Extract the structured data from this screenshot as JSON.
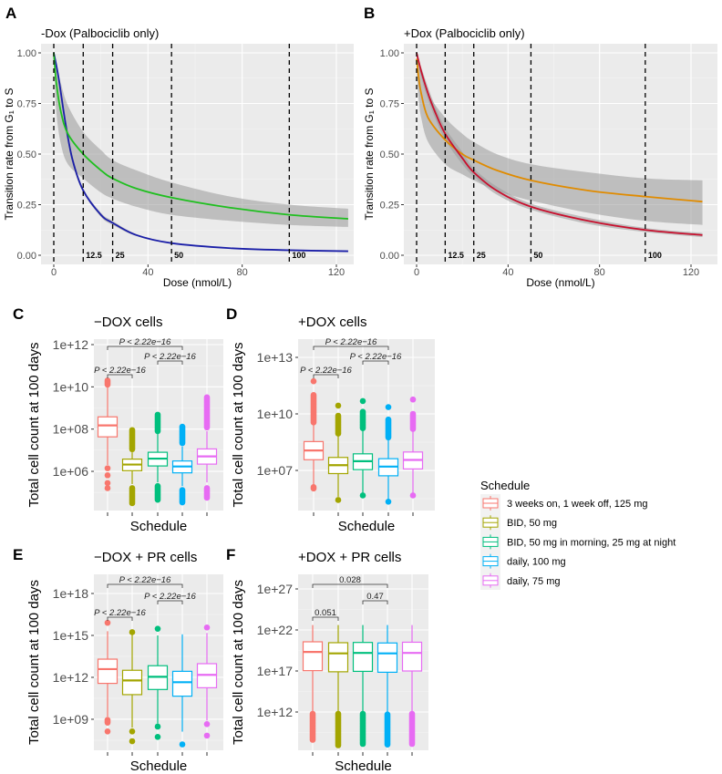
{
  "schedule_colors": {
    "3 weeks on, 1 week off, 125 mg": "#F8766D",
    "BID, 50 mg": "#A3A500",
    "BID, 50 mg in morning, 25 mg at night": "#00BF7D",
    "daily, 100 mg": "#00B0F6",
    "daily, 75 mg": "#E76BF3"
  },
  "legend": {
    "title": "Schedule",
    "items": [
      {
        "label": "3 weeks on, 1 week off, 125 mg",
        "color": "#F8766D"
      },
      {
        "label": "BID, 50 mg",
        "color": "#A3A500"
      },
      {
        "label": "BID, 50 mg in morning, 25 mg at night",
        "color": "#00BF7D"
      },
      {
        "label": "daily, 100 mg",
        "color": "#00B0F6"
      },
      {
        "label": "daily, 75 mg",
        "color": "#E76BF3"
      }
    ]
  },
  "chart_data": [
    {
      "panel": "A",
      "type": "line",
      "title": "-Dox (Palbociclib only)",
      "xlabel": "Dose (nmol/L)",
      "ylabel": "Transition rate from G₁ to S",
      "xlim": [
        0,
        125
      ],
      "ylim": [
        0,
        1
      ],
      "xticks": [
        0,
        40,
        80,
        120
      ],
      "yticks": [
        "0.00",
        "0.25",
        "0.50",
        "0.75",
        "1.00"
      ],
      "grid": true,
      "vlines": [
        {
          "x": 0,
          "label": ""
        },
        {
          "x": 12.5,
          "label": "12.5"
        },
        {
          "x": 25,
          "label": "25"
        },
        {
          "x": 50,
          "label": "50"
        },
        {
          "x": 100,
          "label": "100"
        }
      ],
      "series": [
        {
          "color": "#1B1FA8",
          "x": [
            0,
            2,
            5,
            8,
            12.5,
            20,
            25,
            35,
            50,
            75,
            100,
            125
          ],
          "y": [
            1.0,
            0.88,
            0.65,
            0.47,
            0.32,
            0.2,
            0.16,
            0.1,
            0.06,
            0.035,
            0.025,
            0.02
          ],
          "band_lower": [
            0.99,
            0.86,
            0.63,
            0.45,
            0.31,
            0.19,
            0.15,
            0.095,
            0.057,
            0.033,
            0.023,
            0.018
          ],
          "band_upper": [
            1.0,
            0.9,
            0.67,
            0.49,
            0.33,
            0.21,
            0.17,
            0.105,
            0.063,
            0.037,
            0.027,
            0.022
          ]
        },
        {
          "color": "#1FBF1F",
          "x": [
            0,
            1,
            3,
            6,
            12.5,
            20,
            25,
            35,
            50,
            75,
            100,
            125
          ],
          "y": [
            1.0,
            0.86,
            0.71,
            0.6,
            0.5,
            0.42,
            0.38,
            0.33,
            0.285,
            0.235,
            0.2,
            0.18
          ],
          "band_lower": [
            0.98,
            0.72,
            0.55,
            0.45,
            0.38,
            0.31,
            0.28,
            0.24,
            0.2,
            0.17,
            0.15,
            0.14
          ],
          "band_upper": [
            1.0,
            0.95,
            0.85,
            0.74,
            0.61,
            0.52,
            0.47,
            0.42,
            0.36,
            0.29,
            0.25,
            0.23
          ]
        }
      ]
    },
    {
      "panel": "B",
      "type": "line",
      "title": "+Dox (Palbociclib only)",
      "xlabel": "Dose (nmol/L)",
      "ylabel": "Transition rate from G₁ to S",
      "xlim": [
        0,
        125
      ],
      "ylim": [
        0,
        1
      ],
      "xticks": [
        0,
        40,
        80,
        120
      ],
      "yticks": [
        "0.00",
        "0.25",
        "0.50",
        "0.75",
        "1.00"
      ],
      "grid": true,
      "vlines": [
        {
          "x": 0,
          "label": ""
        },
        {
          "x": 12.5,
          "label": "12.5"
        },
        {
          "x": 25,
          "label": "25"
        },
        {
          "x": 50,
          "label": "50"
        },
        {
          "x": 100,
          "label": "100"
        }
      ],
      "series": [
        {
          "color": "#E08B00",
          "x": [
            0,
            1,
            2,
            5,
            12.5,
            20,
            25,
            35,
            50,
            75,
            100,
            125
          ],
          "y": [
            0.97,
            0.87,
            0.8,
            0.68,
            0.57,
            0.5,
            0.47,
            0.42,
            0.37,
            0.32,
            0.29,
            0.265
          ],
          "band_lower": [
            0.9,
            0.76,
            0.68,
            0.56,
            0.45,
            0.4,
            0.37,
            0.32,
            0.27,
            0.21,
            0.17,
            0.15
          ],
          "band_upper": [
            1.0,
            0.97,
            0.92,
            0.8,
            0.68,
            0.6,
            0.56,
            0.5,
            0.45,
            0.41,
            0.38,
            0.37
          ]
        },
        {
          "color": "#C8102E",
          "x": [
            0,
            2,
            5,
            8,
            12.5,
            20,
            25,
            35,
            50,
            75,
            100,
            125
          ],
          "y": [
            1.0,
            0.91,
            0.8,
            0.71,
            0.6,
            0.48,
            0.41,
            0.32,
            0.24,
            0.17,
            0.125,
            0.1
          ],
          "band_lower": [
            0.98,
            0.88,
            0.77,
            0.68,
            0.57,
            0.45,
            0.39,
            0.3,
            0.225,
            0.155,
            0.115,
            0.09
          ],
          "band_upper": [
            1.0,
            0.93,
            0.83,
            0.74,
            0.63,
            0.51,
            0.43,
            0.34,
            0.255,
            0.185,
            0.135,
            0.11
          ]
        }
      ]
    },
    {
      "panel": "C",
      "type": "box",
      "title": "−DOX  cells",
      "xlabel": "Schedule",
      "ylabel": "Total cell count at 100 days",
      "yscale": "log10",
      "yticks": [
        "1e+06",
        "1e+08",
        "1e+10",
        "1e+12"
      ],
      "grid": true,
      "boxes": [
        {
          "wl": 2000000.0,
          "q1": 43000000.0,
          "med": 150000000.0,
          "q3": 380000000.0,
          "wh": 10000000000.0,
          "out_ranges": [
            [
              12000000000.0,
              20000000000.0
            ]
          ],
          "outliers": [
            1400000.0,
            650000.0,
            280000.0,
            160000.0
          ]
        },
        {
          "wl": 250000.0,
          "q1": 1070000.0,
          "med": 2100000.0,
          "q3": 3800000.0,
          "wh": 8000000.0,
          "out_ranges": [
            [
              10000000.0,
              90000000.0
            ],
            [
              30000.0,
              160000.0
            ]
          ],
          "outliers": []
        },
        {
          "wl": 300000.0,
          "q1": 1800000.0,
          "med": 4000000.0,
          "q3": 8000000.0,
          "wh": 60000000.0,
          "out_ranges": [
            [
              80000000.0,
              480000000.0
            ],
            [
              45000.0,
              200000.0
            ]
          ],
          "outliers": []
        },
        {
          "wl": 200000.0,
          "q1": 850000.0,
          "med": 1700000.0,
          "q3": 3100000.0,
          "wh": 15000000.0,
          "out_ranges": [
            [
              20000000.0,
              130000000.0
            ],
            [
              30000.0,
              130000.0
            ]
          ],
          "outliers": []
        },
        {
          "wl": 300000.0,
          "q1": 2200000.0,
          "med": 5100000.0,
          "q3": 11500000.0,
          "wh": 80000000.0,
          "out_ranges": [
            [
              110000000.0,
              3200000000.0
            ],
            [
              56000.0,
              160000.0
            ]
          ],
          "outliers": []
        }
      ],
      "comparisons": [
        {
          "groups": [
            1,
            4
          ],
          "label": "P < 2.22e−16"
        },
        {
          "groups": [
            3,
            4
          ],
          "label": "P < 2.22e−16"
        },
        {
          "groups": [
            1,
            2
          ],
          "label": "P < 2.22e−16"
        }
      ]
    },
    {
      "panel": "D",
      "type": "box",
      "title": "+DOX cells",
      "xlabel": "Schedule",
      "ylabel": "Total cell count at 100 days",
      "yscale": "log10",
      "yticks": [
        "1e+07",
        "1e+10",
        "1e+13"
      ],
      "grid": true,
      "boxes": [
        {
          "wl": 1500000.0,
          "q1": 37000000.0,
          "med": 115000000.0,
          "q3": 340000000.0,
          "wh": 3000000000.0,
          "out_ranges": [
            [
              3500000000.0,
              100000000000.0
            ],
            [
              1000000.0,
              1300000.0
            ]
          ],
          "outliers": [
            540000000000.0
          ]
        },
        {
          "wl": 400000.0,
          "q1": 6800000.0,
          "med": 19000000.0,
          "q3": 49000000.0,
          "wh": 800000000.0,
          "out_ranges": [
            [
              800000000.0,
              8000000000.0
            ]
          ],
          "outliers": [
            27500000000.0,
            270000.0
          ]
        },
        {
          "wl": 600000.0,
          "q1": 11000000.0,
          "med": 31000000.0,
          "q3": 76000000.0,
          "wh": 1500000000.0,
          "out_ranges": [
            [
              1500000000.0,
              13000000000.0
            ]
          ],
          "outliers": [
            48000000000.0,
            470000.0
          ]
        },
        {
          "wl": 300000.0,
          "q1": 5200000.0,
          "med": 16000000.0,
          "q3": 42000000.0,
          "wh": 500000000.0,
          "out_ranges": [
            [
              500000000.0,
              5000000000.0
            ]
          ],
          "outliers": [
            23000000000.0,
            220000.0
          ]
        },
        {
          "wl": 600000.0,
          "q1": 12000000.0,
          "med": 36000000.0,
          "q3": 95000000.0,
          "wh": 1500000000.0,
          "out_ranges": [
            [
              1500000000.0,
              10000000000.0
            ]
          ],
          "outliers": [
            58000000000.0,
            470000.0
          ]
        }
      ],
      "comparisons": [
        {
          "groups": [
            1,
            4
          ],
          "label": "P < 2.22e−16"
        },
        {
          "groups": [
            3,
            4
          ],
          "label": "P < 2.22e−16"
        },
        {
          "groups": [
            1,
            2
          ],
          "label": "P < 2.22e−16"
        }
      ]
    },
    {
      "panel": "E",
      "type": "box",
      "title": "−DOX + PR cells",
      "xlabel": "Schedule",
      "ylabel": "Total cell count at 100 days",
      "yscale": "log10",
      "yticks": [
        "1e+09",
        "1e+12",
        "1e+15",
        "1e+18"
      ],
      "grid": true,
      "boxes": [
        {
          "wl": 1500000000.0,
          "q1": 370000000000.0,
          "med": 3900000000000.0,
          "q3": 20000000000000.0,
          "wh": 2000000000000000.0,
          "out_ranges": [
            [
              500000000.0,
              900000000.0
            ]
          ],
          "outliers": [
            8000000000000000.0,
            135000000.0
          ]
        },
        {
          "wl": 250000000.0,
          "q1": 58000000000.0,
          "med": 600000000000.0,
          "q3": 3200000000000.0,
          "wh": 1700000000000000.0,
          "out_ranges": [],
          "outliers": [
            1700000000000000.0,
            135000000.0,
            27000000.0
          ]
        },
        {
          "wl": 500000000.0,
          "q1": 135000000000.0,
          "med": 1100000000000.0,
          "q3": 6800000000000.0,
          "wh": 1000000000000000.0,
          "out_ranges": [],
          "outliers": [
            3000000000000000.0,
            300000000.0,
            55000000.0
          ]
        },
        {
          "wl": 130000000.0,
          "q1": 45000000000.0,
          "med": 450000000000.0,
          "q3": 2700000000000.0,
          "wh": 1200000000000000.0,
          "out_ranges": [],
          "outliers": [
            16000000.0
          ]
        },
        {
          "wl": 800000000.0,
          "q1": 180000000000.0,
          "med": 1500000000000.0,
          "q3": 9500000000000.0,
          "wh": 1500000000000000.0,
          "out_ranges": [],
          "outliers": [
            3700000000000000.0,
            450000000.0,
            68000000.0
          ]
        }
      ],
      "comparisons": [
        {
          "groups": [
            1,
            4
          ],
          "label": "P < 2.22e−16"
        },
        {
          "groups": [
            3,
            4
          ],
          "label": "P < 2.22e−16"
        },
        {
          "groups": [
            1,
            2
          ],
          "label": "P < 2.22e−16"
        }
      ]
    },
    {
      "panel": "F",
      "type": "box",
      "title": "+DOX + PR cells",
      "xlabel": "Schedule",
      "ylabel": "Total cell count at 100 days",
      "yscale": "log10",
      "yticks": [
        "1e+12",
        "1e+17",
        "1e+22",
        "1e+27"
      ],
      "grid": true,
      "boxes": [
        {
          "wl": 1000000000000.0,
          "q1": 1.1e+17,
          "med": 2.1e+19,
          "q3": 3.6e+20,
          "wh": 4e+22,
          "out_ranges": [
            [
              400000000.0,
              600000000000.0
            ]
          ],
          "outliers": []
        },
        {
          "wl": 1000000000000.0,
          "q1": 8e+16,
          "med": 1.4e+19,
          "q3": 2.8e+20,
          "wh": 4e+22,
          "out_ranges": [
            [
              90000000.0,
              600000000000.0
            ]
          ],
          "outliers": []
        },
        {
          "wl": 1000000000000.0,
          "q1": 9e+16,
          "med": 1.6e+19,
          "q3": 3e+20,
          "wh": 4e+22,
          "out_ranges": [
            [
              130000000.0,
              600000000000.0
            ]
          ],
          "outliers": []
        },
        {
          "wl": 1000000000000.0,
          "q1": 7e+16,
          "med": 1.4e+19,
          "q3": 2.6e+20,
          "wh": 4e+22,
          "out_ranges": [
            [
              80000000.0,
              500000000000.0
            ]
          ],
          "outliers": []
        },
        {
          "wl": 1000000000000.0,
          "q1": 1e+17,
          "med": 1.6e+19,
          "q3": 3.2e+20,
          "wh": 4e+22,
          "out_ranges": [
            [
              130000000.0,
              600000000000.0
            ]
          ],
          "outliers": []
        }
      ],
      "comparisons": [
        {
          "groups": [
            1,
            4
          ],
          "label": "0.028"
        },
        {
          "groups": [
            3,
            4
          ],
          "label": "0.47"
        },
        {
          "groups": [
            1,
            2
          ],
          "label": "0.051"
        }
      ]
    }
  ]
}
